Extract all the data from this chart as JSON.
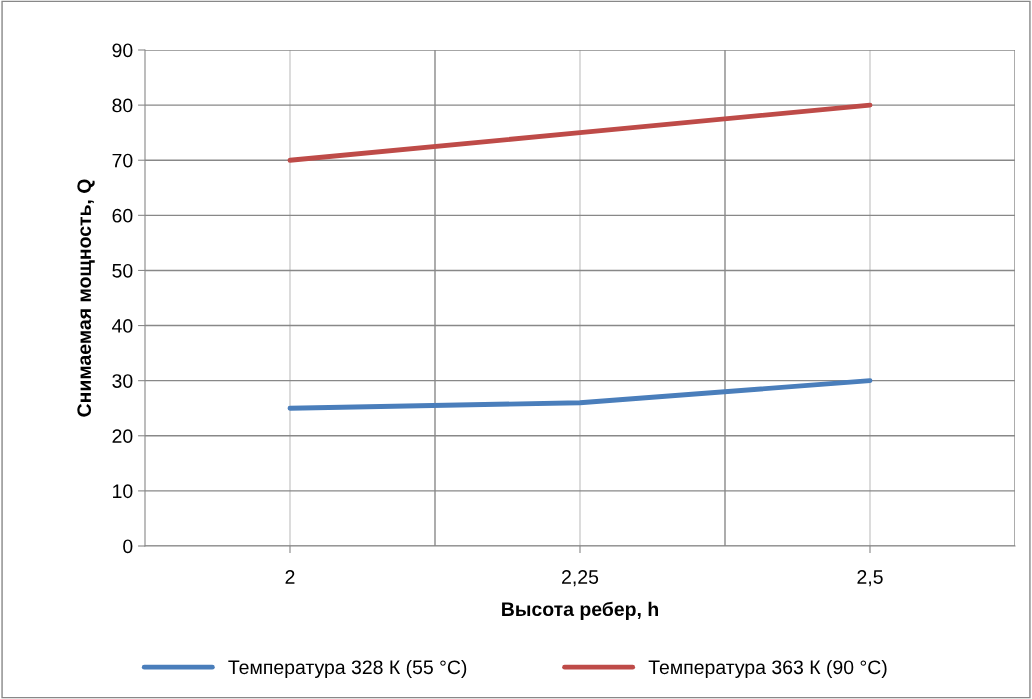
{
  "chart_data": {
    "type": "line",
    "xlabel": "Высота ребер, h",
    "ylabel": "Снимаемая мощность, Q",
    "categories": [
      "2",
      "2,25",
      "2,5"
    ],
    "series": [
      {
        "name": "Температура 328 К (55 °C)",
        "color": "#4a7ebb",
        "values": [
          25,
          26,
          30
        ]
      },
      {
        "name": "Температура 363 К (90 °C)",
        "color": "#be4b48",
        "values": [
          70,
          75,
          80
        ]
      }
    ],
    "ylim": [
      0,
      90
    ],
    "yticks": [
      0,
      10,
      20,
      30,
      40,
      50,
      60,
      70,
      80,
      90
    ],
    "grid": true,
    "legend": "bottom",
    "marker": "none",
    "line_style": "solid"
  }
}
